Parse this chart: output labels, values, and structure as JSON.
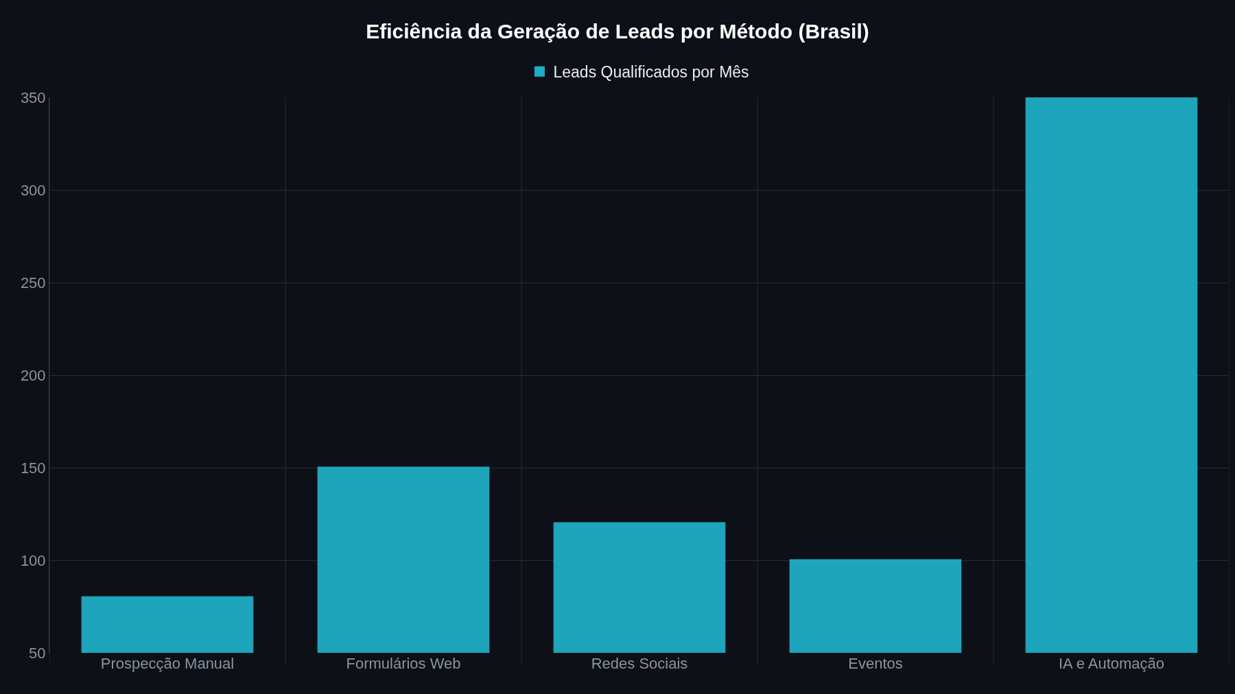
{
  "chart_data": {
    "type": "bar",
    "title": "Eficiência da Geração de Leads por Método (Brasil)",
    "categories": [
      "Prospecção Manual",
      "Formulários Web",
      "Redes Sociais",
      "Eventos",
      "IA e Automação"
    ],
    "series": [
      {
        "name": "Leads Qualificados por Mês",
        "color": "#1eaec4",
        "values": [
          80,
          150,
          120,
          100,
          350
        ]
      }
    ],
    "ylim": [
      50,
      350
    ],
    "yticks": [
      50,
      100,
      150,
      200,
      250,
      300,
      350
    ],
    "grid": true,
    "legend": "top"
  }
}
